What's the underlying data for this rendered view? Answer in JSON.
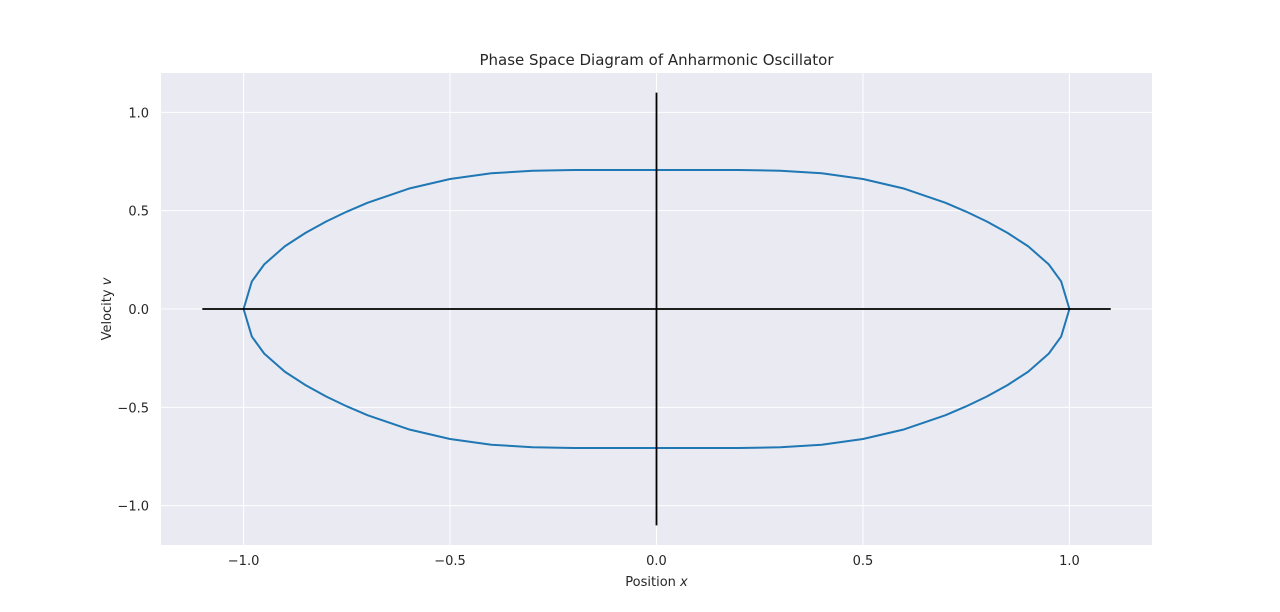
{
  "chart_data": {
    "type": "line",
    "title": "Phase Space Diagram of Anharmonic Oscillator",
    "xlabel": "Position",
    "xlabel_var": "x",
    "ylabel": "Velocity",
    "ylabel_var": "v",
    "xlim": [
      -1.2,
      1.2
    ],
    "ylim": [
      -1.2,
      1.2
    ],
    "xticks": [
      -1.0,
      -0.5,
      0.0,
      0.5,
      1.0
    ],
    "xtick_labels": [
      "−1.0",
      "−0.5",
      "0.0",
      "0.5",
      "1.0"
    ],
    "yticks": [
      -1.0,
      -0.5,
      0.0,
      0.5,
      1.0
    ],
    "ytick_labels": [
      "−1.0",
      "−0.5",
      "0.0",
      "0.5",
      "1.0"
    ],
    "grid": true,
    "background": "#eaeaf2",
    "series": [
      {
        "color": "#1f77b4",
        "x": [
          1.0,
          0.98,
          0.95,
          0.9,
          0.85,
          0.8,
          0.75,
          0.7,
          0.6,
          0.5,
          0.4,
          0.3,
          0.2,
          0.1,
          0.0,
          -0.1,
          -0.2,
          -0.3,
          -0.4,
          -0.5,
          -0.6,
          -0.7,
          -0.75,
          -0.8,
          -0.85,
          -0.9,
          -0.95,
          -0.98,
          -1.0,
          -0.98,
          -0.95,
          -0.9,
          -0.85,
          -0.8,
          -0.75,
          -0.7,
          -0.6,
          -0.5,
          -0.4,
          -0.3,
          -0.2,
          -0.1,
          0.0,
          0.1,
          0.2,
          0.3,
          0.4,
          0.5,
          0.6,
          0.7,
          0.75,
          0.8,
          0.85,
          0.9,
          0.95,
          0.98,
          1.0
        ],
        "y": [
          0.0,
          0.14,
          0.227,
          0.319,
          0.387,
          0.445,
          0.495,
          0.54,
          0.612,
          0.661,
          0.69,
          0.703,
          0.707,
          0.707,
          0.707,
          0.707,
          0.707,
          0.703,
          0.69,
          0.661,
          0.612,
          0.54,
          0.495,
          0.445,
          0.387,
          0.319,
          0.227,
          0.14,
          0.0,
          -0.14,
          -0.227,
          -0.319,
          -0.387,
          -0.445,
          -0.495,
          -0.54,
          -0.612,
          -0.661,
          -0.69,
          -0.703,
          -0.707,
          -0.707,
          -0.707,
          -0.707,
          -0.707,
          -0.703,
          -0.69,
          -0.661,
          -0.612,
          -0.54,
          -0.495,
          -0.445,
          -0.387,
          -0.319,
          -0.227,
          -0.14,
          0.0
        ]
      }
    ],
    "reference_lines": [
      {
        "color": "#000000",
        "x": [
          -1.1,
          1.1
        ],
        "y": [
          0.0,
          0.0
        ]
      },
      {
        "color": "#000000",
        "x": [
          0.0,
          0.0
        ],
        "y": [
          -1.1,
          1.1
        ]
      }
    ]
  }
}
